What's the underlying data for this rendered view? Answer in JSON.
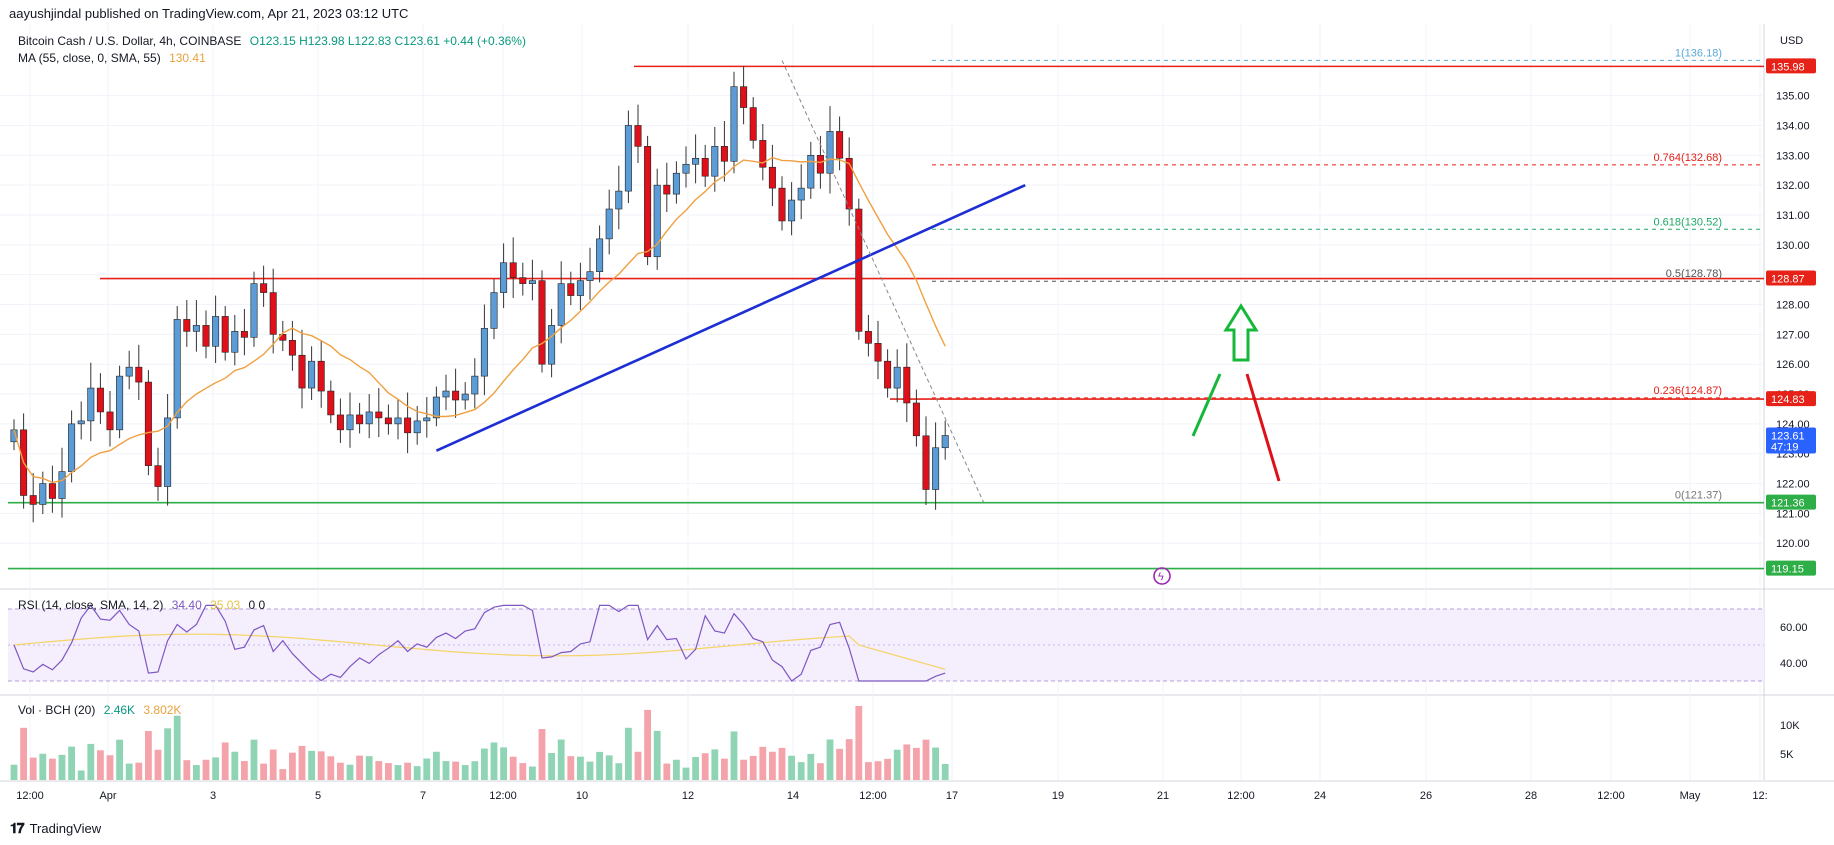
{
  "header": {
    "publisher": "aayushjindal published on TradingView.com, Apr 21, 2023 03:12 UTC"
  },
  "legend": {
    "symbol": "Bitcoin Cash / U.S. Dollar, 4h, COINBASE",
    "ohlc": "O123.15  H123.98  L122.83  C123.61  +0.44 (+0.36%)",
    "ma_label": "MA (55, close, 0, SMA, 55)",
    "ma_value": "130.41",
    "rsi_label": "RSI (14, close, SMA, 14, 2)",
    "rsi_value": "34.40",
    "rsi_ma_value": "35.03",
    "rsi_extra": "0  0",
    "vol_label": "Vol · BCH (20)",
    "vol_value": "2.46K",
    "vol_ma_value": "3.802K"
  },
  "footer": {
    "brand": "TradingView"
  },
  "colors": {
    "up": "#5b9cd6",
    "down": "#e0101a",
    "ma": "#f0a040",
    "trendline": "#1c2ed4",
    "resistance": "#e62117",
    "support": "#2eae47",
    "rsi": "#7e57c2",
    "rsi_ma": "#f5d463",
    "vol_up": "#8fd4b4",
    "vol_down": "#f4a3ab"
  },
  "chart_data": {
    "type": "candlestick",
    "symbol": "Bitcoin Cash / U.S. Dollar",
    "interval": "4h",
    "yaxis_unit": "USD",
    "ylim": [
      118.5,
      137.4
    ],
    "y_ticks": [
      120,
      121,
      122,
      123,
      124,
      125,
      126,
      127,
      128,
      129,
      130,
      131,
      132,
      133,
      134,
      135
    ],
    "y_tick_labels": [
      "120.00",
      "121.00",
      "122.00",
      "123.00",
      "124.00",
      "125.00",
      "126.00",
      "127.00",
      "128.00",
      "129.00",
      "130.00",
      "131.00",
      "132.00",
      "133.00",
      "134.00",
      "135.00"
    ],
    "x_ticks": [
      "12:00",
      "Apr",
      "3",
      "5",
      "7",
      "12:00",
      "10",
      "12",
      "14",
      "12:00",
      "17",
      "19",
      "21",
      "12:00",
      "24",
      "26",
      "28",
      "12:00",
      "May",
      "12:"
    ],
    "closes": [
      123.8,
      121.6,
      121.3,
      122.0,
      121.5,
      122.4,
      124.0,
      124.1,
      125.2,
      124.4,
      123.8,
      125.6,
      125.9,
      125.4,
      122.6,
      121.9,
      124.2,
      127.5,
      127.1,
      127.3,
      126.6,
      127.6,
      126.4,
      127.1,
      126.9,
      128.7,
      128.4,
      127.0,
      126.8,
      126.3,
      125.2,
      126.1,
      125.1,
      124.3,
      123.8,
      124.3,
      124.0,
      124.4,
      124.2,
      124.0,
      124.2,
      123.7,
      124.1,
      124.2,
      124.9,
      125.1,
      124.8,
      125.0,
      125.6,
      127.2,
      128.4,
      129.4,
      128.9,
      128.7,
      128.8,
      126.0,
      127.3,
      128.7,
      128.3,
      128.8,
      129.1,
      130.2,
      131.2,
      131.8,
      134.0,
      133.3,
      129.6,
      132.0,
      131.7,
      132.4,
      132.7,
      132.9,
      132.3,
      133.3,
      132.8,
      135.3,
      134.6,
      133.5,
      132.6,
      131.9,
      130.8,
      131.5,
      131.9,
      133.0,
      132.4,
      133.8,
      132.9,
      131.2,
      127.1,
      126.7,
      126.1,
      125.2,
      125.9,
      124.7,
      123.6,
      121.8,
      123.2,
      123.61
    ],
    "support_levels": [
      121.36,
      119.15
    ],
    "resistance_levels": [
      135.98,
      128.87,
      124.83
    ],
    "price_labels": [
      {
        "value": 135.98,
        "text": "135.98",
        "color": "#e62117"
      },
      {
        "value": 128.87,
        "text": "128.87",
        "color": "#e62117"
      },
      {
        "value": 124.83,
        "text": "124.83",
        "color": "#e62117"
      },
      {
        "value": 123.61,
        "text": "123.61",
        "sub": "47:19",
        "color": "#2962ff"
      },
      {
        "value": 121.36,
        "text": "121.36",
        "color": "#2eae47"
      },
      {
        "value": 119.15,
        "text": "119.15",
        "color": "#2eae47"
      }
    ],
    "fib_levels": [
      {
        "ratio": "1",
        "value": 136.18,
        "label": "1(136.18)",
        "color": "#5aa9d6"
      },
      {
        "ratio": "0.764",
        "value": 132.68,
        "label": "0.764(132.68)",
        "color": "#e62117"
      },
      {
        "ratio": "0.618",
        "value": 130.52,
        "label": "0.618(130.52)",
        "color": "#1ea866"
      },
      {
        "ratio": "0.5",
        "value": 128.78,
        "label": "0.5(128.78)",
        "color": "#555555"
      },
      {
        "ratio": "0.236",
        "value": 124.87,
        "label": "0.236(124.87)",
        "color": "#e62117"
      },
      {
        "ratio": "0",
        "value": 121.37,
        "label": "0(121.37)",
        "color": "#777777"
      }
    ],
    "trendline": {
      "from": 123.1,
      "to": 132.0
    },
    "ma55": {
      "last": 130.41
    },
    "rsi": {
      "ylim": [
        25,
        75
      ],
      "ticks": [
        40,
        60
      ],
      "band": [
        30,
        70
      ],
      "last": 34.4,
      "ma_last": 35.03
    },
    "volume": {
      "ticks": [
        "5K",
        "10K"
      ],
      "last": "2.46K",
      "ma_last": "3.802K"
    }
  }
}
